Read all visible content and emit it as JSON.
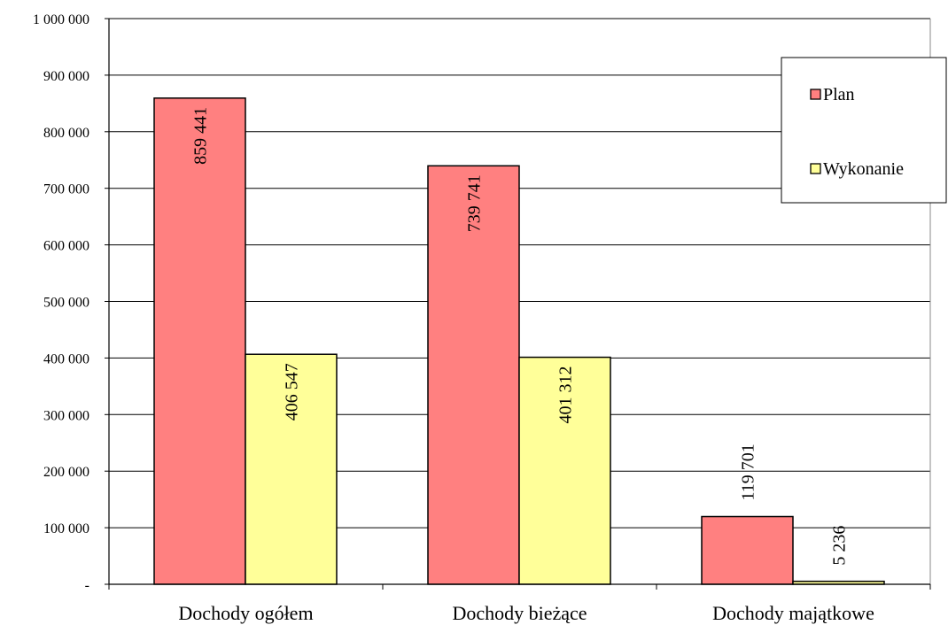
{
  "chart_data": {
    "type": "bar",
    "categories": [
      "Dochody ogółem",
      "Dochody bieżące",
      "Dochody majątkowe"
    ],
    "series": [
      {
        "name": "Plan",
        "values": [
          859441,
          739741,
          119701
        ],
        "labels": [
          "859 441",
          "739 741",
          "119 701"
        ],
        "color": "#FF8080"
      },
      {
        "name": "Wykonanie",
        "values": [
          406547,
          401312,
          5236
        ],
        "labels": [
          "406 547",
          "401 312",
          "5 236"
        ],
        "color": "#FFFF99"
      }
    ],
    "ylim": [
      0,
      1000000
    ],
    "yticks": [
      0,
      100000,
      200000,
      300000,
      400000,
      500000,
      600000,
      700000,
      800000,
      900000,
      1000000
    ],
    "ytick_labels": [
      "-",
      "100 000",
      "200 000",
      "300 000",
      "400 000",
      "500 000",
      "600 000",
      "700 000",
      "800 000",
      "900 000",
      "1 000 000"
    ],
    "grid": true,
    "legend_position": "top-right",
    "data_labels_rotated": true
  }
}
